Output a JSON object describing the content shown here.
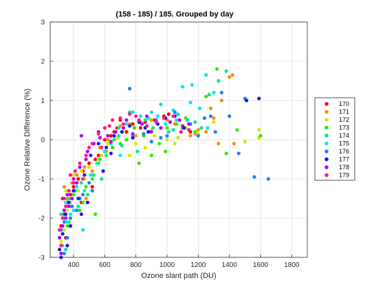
{
  "chart_data": {
    "type": "scatter",
    "title": "(158 - 185) / 185.  Grouped by day",
    "xlabel": "Ozone slant path (DU)",
    "ylabel": "Ozone Relative Difference (%)",
    "xlim": [
      250,
      1900
    ],
    "ylim": [
      -3,
      3
    ],
    "xticks": [
      400,
      600,
      800,
      1000,
      1200,
      1400,
      1600,
      1800
    ],
    "yticks": [
      -3,
      -2,
      -1,
      0,
      1,
      2,
      3
    ],
    "grid": true,
    "legend_position": "right-outside",
    "series": [
      {
        "name": "170",
        "color": "#ff0000",
        "points": [
          [
            320,
            -2.2
          ],
          [
            340,
            -1.9
          ],
          [
            360,
            -1.6
          ],
          [
            380,
            -1.4
          ],
          [
            400,
            -1.2
          ],
          [
            430,
            -1.0
          ],
          [
            460,
            -0.8
          ],
          [
            500,
            -0.6
          ],
          [
            540,
            -0.5
          ],
          [
            560,
            -0.4
          ],
          [
            600,
            0.0
          ],
          [
            640,
            0.1
          ],
          [
            680,
            0.3
          ],
          [
            700,
            0.5
          ],
          [
            740,
            0.2
          ],
          [
            780,
            0.4
          ],
          [
            830,
            0.3
          ],
          [
            880,
            0.2
          ],
          [
            920,
            0.5
          ],
          [
            980,
            0.6
          ],
          [
            1010,
            0.65
          ],
          [
            1050,
            0.4
          ],
          [
            1100,
            0.35
          ],
          [
            1150,
            0.2
          ],
          [
            330,
            -1.5
          ],
          [
            350,
            -2.5
          ],
          [
            450,
            -1.6
          ],
          [
            520,
            -1.2
          ],
          [
            660,
            0.2
          ],
          [
            860,
            0.45
          ]
        ]
      },
      {
        "name": "171",
        "color": "#ff8c00",
        "points": [
          [
            330,
            -2.0
          ],
          [
            360,
            -1.5
          ],
          [
            390,
            -1.1
          ],
          [
            420,
            -0.9
          ],
          [
            470,
            -0.7
          ],
          [
            520,
            -0.8
          ],
          [
            570,
            -0.2
          ],
          [
            620,
            0.0
          ],
          [
            700,
            0.35
          ],
          [
            760,
            0.4
          ],
          [
            830,
            0.45
          ],
          [
            900,
            0.5
          ],
          [
            960,
            0.3
          ],
          [
            1050,
            0.4
          ],
          [
            1150,
            0.1
          ],
          [
            1200,
            0.25
          ],
          [
            1280,
            0.8
          ],
          [
            1350,
            1.0
          ],
          [
            1400,
            1.6
          ],
          [
            1420,
            1.65
          ],
          [
            1430,
            -0.1
          ],
          [
            1330,
            -0.1
          ],
          [
            1300,
            0.55
          ],
          [
            1250,
            0.2
          ],
          [
            1180,
            0.15
          ],
          [
            340,
            -1.2
          ],
          [
            480,
            -1.5
          ],
          [
            610,
            -0.3
          ],
          [
            800,
            0.1
          ],
          [
            1000,
            0.5
          ]
        ]
      },
      {
        "name": "172",
        "color": "#d4e800",
        "points": [
          [
            320,
            -2.6
          ],
          [
            340,
            -2.3
          ],
          [
            360,
            -1.8
          ],
          [
            380,
            -1.6
          ],
          [
            400,
            -0.9
          ],
          [
            430,
            -1.3
          ],
          [
            470,
            -1.0
          ],
          [
            500,
            -0.7
          ],
          [
            560,
            -0.5
          ],
          [
            620,
            -0.1
          ],
          [
            680,
            0.05
          ],
          [
            720,
            0.2
          ],
          [
            760,
            -0.4
          ],
          [
            800,
            -0.1
          ],
          [
            860,
            -0.2
          ],
          [
            920,
            0.1
          ],
          [
            1000,
            0.0
          ],
          [
            1070,
            0.05
          ],
          [
            1120,
            0.3
          ],
          [
            1200,
            0.15
          ],
          [
            1300,
            0.45
          ],
          [
            1400,
            0.6
          ],
          [
            1500,
            -0.05
          ],
          [
            1590,
            0.25
          ],
          [
            1590,
            0.05
          ],
          [
            350,
            -1.3
          ],
          [
            450,
            -0.8
          ],
          [
            580,
            -0.4
          ],
          [
            900,
            0.25
          ],
          [
            1050,
            -0.1
          ]
        ]
      },
      {
        "name": "173",
        "color": "#33e800",
        "points": [
          [
            330,
            -2.4
          ],
          [
            350,
            -1.7
          ],
          [
            370,
            -2.1
          ],
          [
            400,
            -1.4
          ],
          [
            440,
            -1.8
          ],
          [
            480,
            -1.2
          ],
          [
            520,
            -1.0
          ],
          [
            560,
            -0.6
          ],
          [
            600,
            -0.3
          ],
          [
            650,
            -0.2
          ],
          [
            700,
            -0.1
          ],
          [
            740,
            0.0
          ],
          [
            790,
            0.3
          ],
          [
            850,
            0.1
          ],
          [
            900,
            -0.4
          ],
          [
            950,
            -0.1
          ],
          [
            1000,
            0.3
          ],
          [
            1060,
            0.4
          ],
          [
            1120,
            0.55
          ],
          [
            1180,
            0.2
          ],
          [
            1250,
            1.1
          ],
          [
            1320,
            1.8
          ],
          [
            1380,
            -0.35
          ],
          [
            1450,
            0.25
          ],
          [
            1600,
            0.1
          ],
          [
            360,
            -2.2
          ],
          [
            460,
            -1.6
          ],
          [
            540,
            -1.9
          ],
          [
            820,
            -0.6
          ],
          [
            990,
            -0.3
          ]
        ]
      },
      {
        "name": "174",
        "color": "#00e890",
        "points": [
          [
            320,
            -1.9
          ],
          [
            340,
            -2.0
          ],
          [
            370,
            -1.5
          ],
          [
            410,
            -1.3
          ],
          [
            450,
            -1.1
          ],
          [
            490,
            -1.4
          ],
          [
            530,
            -0.9
          ],
          [
            570,
            -0.5
          ],
          [
            610,
            -0.4
          ],
          [
            660,
            0.0
          ],
          [
            710,
            -0.15
          ],
          [
            760,
            0.7
          ],
          [
            810,
            -0.3
          ],
          [
            860,
            0.5
          ],
          [
            910,
            0.3
          ],
          [
            960,
            0.9
          ],
          [
            1010,
            0.2
          ],
          [
            1070,
            0.65
          ],
          [
            1130,
            0.5
          ],
          [
            1220,
            0.3
          ],
          [
            1270,
            1.15
          ],
          [
            1330,
            1.5
          ],
          [
            1380,
            1.75
          ],
          [
            350,
            -2.8
          ],
          [
            430,
            -1.7
          ],
          [
            580,
            -1.0
          ],
          [
            690,
            0.3
          ],
          [
            780,
            0.1
          ],
          [
            1040,
            0.25
          ],
          [
            1180,
            0.45
          ]
        ]
      },
      {
        "name": "175",
        "color": "#00e8e8",
        "points": [
          [
            330,
            -2.7
          ],
          [
            350,
            -1.6
          ],
          [
            380,
            -1.9
          ],
          [
            420,
            -1.2
          ],
          [
            460,
            -2.3
          ],
          [
            510,
            -0.9
          ],
          [
            550,
            -0.6
          ],
          [
            600,
            -0.3
          ],
          [
            640,
            -0.1
          ],
          [
            690,
            0.1
          ],
          [
            740,
            0.4
          ],
          [
            780,
            0.7
          ],
          [
            830,
            0.6
          ],
          [
            880,
            0.55
          ],
          [
            940,
            0.6
          ],
          [
            990,
            0.4
          ],
          [
            1040,
            0.75
          ],
          [
            1100,
            1.35
          ],
          [
            1150,
            0.95
          ],
          [
            1210,
            0.8
          ],
          [
            1250,
            1.65
          ],
          [
            1300,
            1.2
          ],
          [
            1260,
            0.3
          ],
          [
            360,
            -2.1
          ],
          [
            400,
            -1.8
          ],
          [
            470,
            -1.3
          ],
          [
            700,
            -0.4
          ],
          [
            900,
            0.7
          ],
          [
            1060,
            0.5
          ],
          [
            1160,
            1.4
          ]
        ]
      },
      {
        "name": "176",
        "color": "#1e7fff",
        "points": [
          [
            320,
            -2.3
          ],
          [
            340,
            -2.1
          ],
          [
            360,
            -2.5
          ],
          [
            390,
            -1.7
          ],
          [
            420,
            -1.8
          ],
          [
            460,
            -1.4
          ],
          [
            500,
            -1.1
          ],
          [
            760,
            1.3
          ],
          [
            900,
            -0.05
          ],
          [
            960,
            0.05
          ],
          [
            1000,
            0.1
          ],
          [
            1100,
            0.3
          ],
          [
            1200,
            0.1
          ],
          [
            1280,
            0.6
          ],
          [
            1350,
            1.2
          ],
          [
            1400,
            0.6
          ],
          [
            1460,
            -0.35
          ],
          [
            1500,
            1.05
          ],
          [
            1560,
            -0.95
          ],
          [
            1650,
            -1.0
          ],
          [
            340,
            -2.9
          ],
          [
            380,
            -2.0
          ],
          [
            440,
            -1.5
          ],
          [
            520,
            -1.3
          ],
          [
            850,
            0.15
          ],
          [
            930,
            0.5
          ],
          [
            1050,
            0.7
          ],
          [
            1150,
            0.4
          ],
          [
            1240,
            0.55
          ],
          [
            1310,
            0.2
          ]
        ]
      },
      {
        "name": "177",
        "color": "#1a1ae0",
        "points": [
          [
            310,
            -2.8
          ],
          [
            330,
            -2.4
          ],
          [
            350,
            -1.9
          ],
          [
            370,
            -1.6
          ],
          [
            400,
            -1.3
          ],
          [
            430,
            -1.5
          ],
          [
            470,
            -0.9
          ],
          [
            510,
            -0.4
          ],
          [
            560,
            -0.1
          ],
          [
            610,
            -0.2
          ],
          [
            660,
            0.1
          ],
          [
            710,
            0.2
          ],
          [
            760,
            0.35
          ],
          [
            820,
            0.45
          ],
          [
            880,
            0.2
          ],
          [
            940,
            0.4
          ],
          [
            990,
            0.55
          ],
          [
            1050,
            0.6
          ],
          [
            1110,
            0.3
          ],
          [
            1590,
            1.05
          ],
          [
            1510,
            1.0
          ],
          [
            320,
            -3.0
          ],
          [
            360,
            -2.7
          ],
          [
            380,
            -2.2
          ],
          [
            450,
            -1.9
          ],
          [
            490,
            -1.6
          ],
          [
            590,
            -0.8
          ],
          [
            640,
            -0.35
          ],
          [
            780,
            0.05
          ],
          [
            860,
            0.3
          ]
        ]
      },
      {
        "name": "178",
        "color": "#b000ff",
        "points": [
          [
            310,
            -2.5
          ],
          [
            330,
            -2.2
          ],
          [
            350,
            -2.0
          ],
          [
            370,
            -1.7
          ],
          [
            390,
            -1.5
          ],
          [
            420,
            -1.1
          ],
          [
            450,
            0.1
          ],
          [
            490,
            -0.3
          ],
          [
            530,
            -0.1
          ],
          [
            570,
            0.05
          ],
          [
            620,
            0.1
          ],
          [
            670,
            0.2
          ],
          [
            720,
            0.3
          ],
          [
            780,
            0.15
          ],
          [
            840,
            0.4
          ],
          [
            900,
            0.2
          ],
          [
            960,
            0.3
          ],
          [
            1020,
            0.45
          ],
          [
            1080,
            0.5
          ],
          [
            1140,
            0.4
          ],
          [
            320,
            -2.9
          ],
          [
            340,
            -1.8
          ],
          [
            360,
            -1.4
          ],
          [
            400,
            -1.0
          ],
          [
            440,
            -0.7
          ],
          [
            480,
            -0.5
          ],
          [
            560,
            0.2
          ],
          [
            640,
            -0.05
          ],
          [
            740,
            0.5
          ],
          [
            870,
            0.6
          ]
        ]
      },
      {
        "name": "179",
        "color": "#ff1a8c",
        "points": [
          [
            310,
            -2.3
          ],
          [
            330,
            -2.0
          ],
          [
            350,
            -1.7
          ],
          [
            370,
            -1.3
          ],
          [
            400,
            -1.1
          ],
          [
            440,
            -0.6
          ],
          [
            480,
            -0.4
          ],
          [
            520,
            -0.1
          ],
          [
            560,
            0.15
          ],
          [
            600,
            0.3
          ],
          [
            650,
            0.5
          ],
          [
            700,
            0.55
          ],
          [
            760,
            0.65
          ],
          [
            820,
            0.5
          ],
          [
            870,
            0.35
          ],
          [
            930,
            0.45
          ],
          [
            980,
            0.55
          ],
          [
            1040,
            0.6
          ],
          [
            1090,
            0.2
          ],
          [
            1140,
            0.25
          ],
          [
            320,
            -2.7
          ],
          [
            340,
            -1.5
          ],
          [
            380,
            -0.9
          ],
          [
            410,
            -0.8
          ],
          [
            460,
            -1.0
          ],
          [
            500,
            -0.2
          ],
          [
            580,
            -0.2
          ],
          [
            630,
            0.35
          ],
          [
            720,
            0.4
          ],
          [
            800,
            0.6
          ]
        ]
      }
    ]
  }
}
